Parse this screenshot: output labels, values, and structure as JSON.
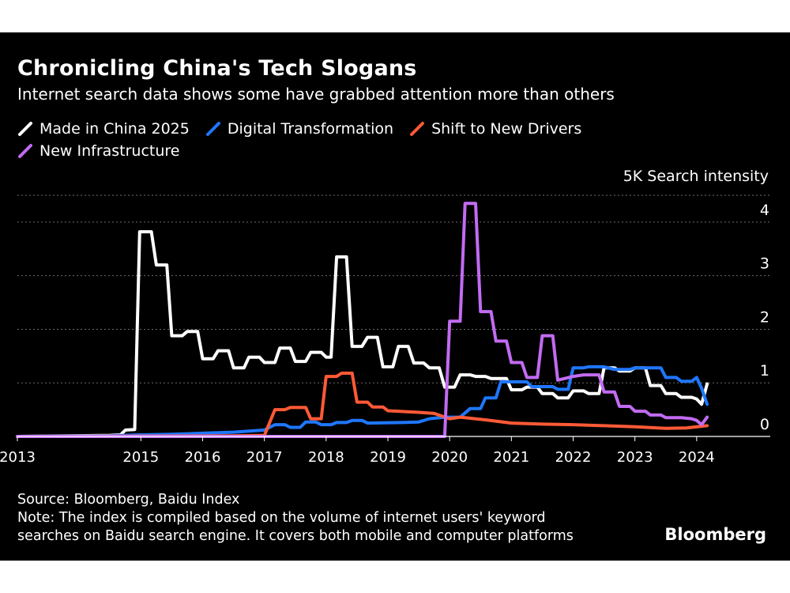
{
  "header": {
    "title": "Chronicling China's Tech Slogans",
    "subtitle": "Internet search data shows some have grabbed attention more than others"
  },
  "footer": {
    "source": "Source: Bloomberg, Baidu Index",
    "note_line1": "Note: The index is compiled based on the volume of internet users' keyword",
    "note_line2": "searches on Baidu search engine. It covers both mobile and computer platforms",
    "brand": "Bloomberg"
  },
  "chart_data": {
    "type": "line",
    "title": "Chronicling China's Tech Slogans",
    "ylabel": "5K Search intensity",
    "xlabel": "",
    "xlim": [
      2013.0,
      2025.0
    ],
    "ylim": [
      0,
      4.5
    ],
    "y_ticks": [
      0,
      1,
      2,
      3,
      4
    ],
    "x_ticks": [
      2013,
      2015,
      2016,
      2017,
      2018,
      2019,
      2020,
      2021,
      2022,
      2023,
      2024
    ],
    "grid": true,
    "legend_position": "top-left",
    "series": [
      {
        "name": "Made in China 2025",
        "color": "#ffffff",
        "points": [
          [
            2013.0,
            0
          ],
          [
            2014.5,
            0.02
          ],
          [
            2014.67,
            0.03
          ],
          [
            2014.75,
            0.12
          ],
          [
            2014.9,
            0.13
          ],
          [
            2014.98,
            3.82
          ],
          [
            2015.17,
            3.82
          ],
          [
            2015.25,
            3.2
          ],
          [
            2015.42,
            3.2
          ],
          [
            2015.5,
            1.88
          ],
          [
            2015.67,
            1.88
          ],
          [
            2015.75,
            1.96
          ],
          [
            2015.92,
            1.96
          ],
          [
            2016.0,
            1.45
          ],
          [
            2016.17,
            1.45
          ],
          [
            2016.25,
            1.6
          ],
          [
            2016.42,
            1.6
          ],
          [
            2016.5,
            1.28
          ],
          [
            2016.67,
            1.28
          ],
          [
            2016.75,
            1.48
          ],
          [
            2016.92,
            1.48
          ],
          [
            2017.0,
            1.38
          ],
          [
            2017.17,
            1.38
          ],
          [
            2017.25,
            1.65
          ],
          [
            2017.42,
            1.65
          ],
          [
            2017.5,
            1.4
          ],
          [
            2017.67,
            1.4
          ],
          [
            2017.75,
            1.57
          ],
          [
            2017.92,
            1.57
          ],
          [
            2018.0,
            1.48
          ],
          [
            2018.08,
            1.48
          ],
          [
            2018.17,
            3.35
          ],
          [
            2018.33,
            3.35
          ],
          [
            2018.42,
            1.68
          ],
          [
            2018.58,
            1.68
          ],
          [
            2018.67,
            1.85
          ],
          [
            2018.83,
            1.85
          ],
          [
            2018.92,
            1.3
          ],
          [
            2019.08,
            1.3
          ],
          [
            2019.17,
            1.68
          ],
          [
            2019.33,
            1.68
          ],
          [
            2019.42,
            1.37
          ],
          [
            2019.58,
            1.37
          ],
          [
            2019.67,
            1.28
          ],
          [
            2019.83,
            1.28
          ],
          [
            2019.92,
            0.92
          ],
          [
            2020.08,
            0.92
          ],
          [
            2020.17,
            1.15
          ],
          [
            2020.33,
            1.15
          ],
          [
            2020.42,
            1.12
          ],
          [
            2020.58,
            1.12
          ],
          [
            2020.67,
            1.08
          ],
          [
            2020.92,
            1.08
          ],
          [
            2021.0,
            0.87
          ],
          [
            2021.17,
            0.87
          ],
          [
            2021.25,
            0.92
          ],
          [
            2021.42,
            0.92
          ],
          [
            2021.5,
            0.8
          ],
          [
            2021.67,
            0.8
          ],
          [
            2021.75,
            0.72
          ],
          [
            2021.92,
            0.72
          ],
          [
            2022.0,
            0.85
          ],
          [
            2022.17,
            0.85
          ],
          [
            2022.25,
            0.8
          ],
          [
            2022.42,
            0.8
          ],
          [
            2022.5,
            1.28
          ],
          [
            2022.67,
            1.28
          ],
          [
            2022.75,
            1.22
          ],
          [
            2022.92,
            1.22
          ],
          [
            2023.0,
            1.28
          ],
          [
            2023.17,
            1.28
          ],
          [
            2023.25,
            0.95
          ],
          [
            2023.42,
            0.95
          ],
          [
            2023.5,
            0.8
          ],
          [
            2023.67,
            0.8
          ],
          [
            2023.75,
            0.73
          ],
          [
            2023.92,
            0.73
          ],
          [
            2024.0,
            0.7
          ],
          [
            2024.08,
            0.6
          ],
          [
            2024.17,
            0.98
          ]
        ]
      },
      {
        "name": "Digital Transformation",
        "color": "#1f77ff",
        "points": [
          [
            2013.0,
            0
          ],
          [
            2014.5,
            0.01
          ],
          [
            2015.0,
            0.03
          ],
          [
            2015.5,
            0.04
          ],
          [
            2016.0,
            0.06
          ],
          [
            2016.5,
            0.08
          ],
          [
            2016.75,
            0.1
          ],
          [
            2017.0,
            0.12
          ],
          [
            2017.17,
            0.22
          ],
          [
            2017.33,
            0.22
          ],
          [
            2017.42,
            0.17
          ],
          [
            2017.58,
            0.17
          ],
          [
            2017.67,
            0.27
          ],
          [
            2017.83,
            0.27
          ],
          [
            2017.92,
            0.22
          ],
          [
            2018.08,
            0.22
          ],
          [
            2018.17,
            0.26
          ],
          [
            2018.33,
            0.26
          ],
          [
            2018.42,
            0.3
          ],
          [
            2018.58,
            0.3
          ],
          [
            2018.67,
            0.25
          ],
          [
            2019.25,
            0.26
          ],
          [
            2019.5,
            0.27
          ],
          [
            2019.67,
            0.33
          ],
          [
            2019.92,
            0.36
          ],
          [
            2020.17,
            0.36
          ],
          [
            2020.33,
            0.52
          ],
          [
            2020.5,
            0.52
          ],
          [
            2020.58,
            0.72
          ],
          [
            2020.75,
            0.72
          ],
          [
            2020.83,
            1.02
          ],
          [
            2021.25,
            1.02
          ],
          [
            2021.33,
            0.93
          ],
          [
            2021.67,
            0.93
          ],
          [
            2021.75,
            0.88
          ],
          [
            2021.92,
            0.88
          ],
          [
            2022.0,
            1.28
          ],
          [
            2022.17,
            1.28
          ],
          [
            2022.25,
            1.3
          ],
          [
            2022.5,
            1.3
          ],
          [
            2022.67,
            1.25
          ],
          [
            2022.92,
            1.25
          ],
          [
            2023.0,
            1.28
          ],
          [
            2023.42,
            1.28
          ],
          [
            2023.5,
            1.1
          ],
          [
            2023.67,
            1.1
          ],
          [
            2023.75,
            1.03
          ],
          [
            2023.92,
            1.03
          ],
          [
            2024.0,
            1.1
          ],
          [
            2024.08,
            0.9
          ],
          [
            2024.17,
            0.6
          ]
        ]
      },
      {
        "name": "Shift to New Drivers",
        "color": "#ff5a36",
        "points": [
          [
            2013.0,
            0
          ],
          [
            2016.5,
            0.01
          ],
          [
            2017.0,
            0.02
          ],
          [
            2017.17,
            0.5
          ],
          [
            2017.33,
            0.5
          ],
          [
            2017.42,
            0.54
          ],
          [
            2017.67,
            0.54
          ],
          [
            2017.75,
            0.33
          ],
          [
            2017.92,
            0.33
          ],
          [
            2018.0,
            1.12
          ],
          [
            2018.17,
            1.12
          ],
          [
            2018.25,
            1.18
          ],
          [
            2018.42,
            1.18
          ],
          [
            2018.5,
            0.64
          ],
          [
            2018.67,
            0.64
          ],
          [
            2018.75,
            0.55
          ],
          [
            2018.92,
            0.55
          ],
          [
            2019.0,
            0.48
          ],
          [
            2019.5,
            0.45
          ],
          [
            2019.75,
            0.43
          ],
          [
            2020.0,
            0.33
          ],
          [
            2020.17,
            0.36
          ],
          [
            2020.58,
            0.31
          ],
          [
            2021.0,
            0.25
          ],
          [
            2021.5,
            0.23
          ],
          [
            2022.0,
            0.22
          ],
          [
            2022.5,
            0.2
          ],
          [
            2023.0,
            0.18
          ],
          [
            2023.5,
            0.15
          ],
          [
            2023.83,
            0.16
          ],
          [
            2024.17,
            0.2
          ]
        ]
      },
      {
        "name": "New Infrastructure",
        "color": "#c26bf2",
        "points": [
          [
            2013.0,
            0
          ],
          [
            2019.92,
            0
          ],
          [
            2020.0,
            2.15
          ],
          [
            2020.17,
            2.15
          ],
          [
            2020.25,
            4.35
          ],
          [
            2020.42,
            4.35
          ],
          [
            2020.5,
            2.33
          ],
          [
            2020.67,
            2.33
          ],
          [
            2020.75,
            1.78
          ],
          [
            2020.92,
            1.78
          ],
          [
            2021.0,
            1.38
          ],
          [
            2021.17,
            1.38
          ],
          [
            2021.25,
            1.1
          ],
          [
            2021.42,
            1.1
          ],
          [
            2021.5,
            1.88
          ],
          [
            2021.67,
            1.88
          ],
          [
            2021.75,
            1.05
          ],
          [
            2022.0,
            1.12
          ],
          [
            2022.17,
            1.15
          ],
          [
            2022.42,
            1.15
          ],
          [
            2022.5,
            0.83
          ],
          [
            2022.67,
            0.83
          ],
          [
            2022.75,
            0.56
          ],
          [
            2022.92,
            0.56
          ],
          [
            2023.0,
            0.47
          ],
          [
            2023.17,
            0.47
          ],
          [
            2023.25,
            0.4
          ],
          [
            2023.42,
            0.4
          ],
          [
            2023.5,
            0.35
          ],
          [
            2023.75,
            0.35
          ],
          [
            2023.92,
            0.33
          ],
          [
            2024.0,
            0.3
          ],
          [
            2024.08,
            0.22
          ],
          [
            2024.17,
            0.36
          ]
        ]
      }
    ]
  }
}
